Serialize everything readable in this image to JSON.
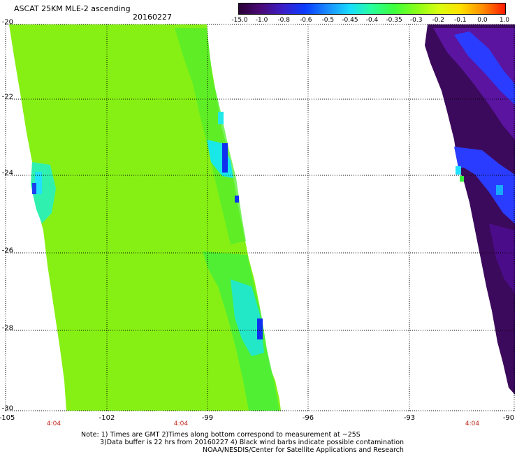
{
  "title": "ASCAT 25KM MLE-2 ascending",
  "date": "20160227",
  "colorbar": {
    "labels": [
      "-15.0",
      "-1.0",
      "-0.8",
      "-0.6",
      "-0.5",
      "-0.45",
      "-0.4",
      "-0.35",
      "-0.3",
      "-0.2",
      "-0.1",
      "0.0",
      "1.0"
    ],
    "colors": [
      "#2a0038",
      "#4a0a78",
      "#3a1ec8",
      "#0a3cff",
      "#1a8cff",
      "#18dcff",
      "#28ff9a",
      "#3cff3c",
      "#88ff18",
      "#d8ff10",
      "#ffe000",
      "#ff8c00",
      "#ff1a00"
    ]
  },
  "axes": {
    "lat_labels": [
      "-20",
      "-22",
      "-24",
      "-26",
      "-28",
      "-30"
    ],
    "lon_labels": [
      "-105",
      "-102",
      "-99",
      "-96",
      "-93",
      "-90"
    ],
    "time_labels": [
      "4:04",
      "4:04",
      "4:04"
    ]
  },
  "notes": {
    "line1": "Note: 1) Times are GMT 2)Times along bottom correspond to measurement at ~25S",
    "line2": "3)Data buffer is 22 hrs from 20160227 4) Black wind barbs indicate possible contamination",
    "line3": "NOAA/NESDIS/Center for Satellite Applications and Research"
  },
  "palette": {
    "swath_base": "#86f014",
    "swath_green": "#3cf03c",
    "swath_cyan": "#18e8e8",
    "swath_blue": "#1030f0",
    "purple_dark": "#3c0a5c",
    "purple_mid": "#5a14a0",
    "blue_band": "#2a3cff"
  }
}
